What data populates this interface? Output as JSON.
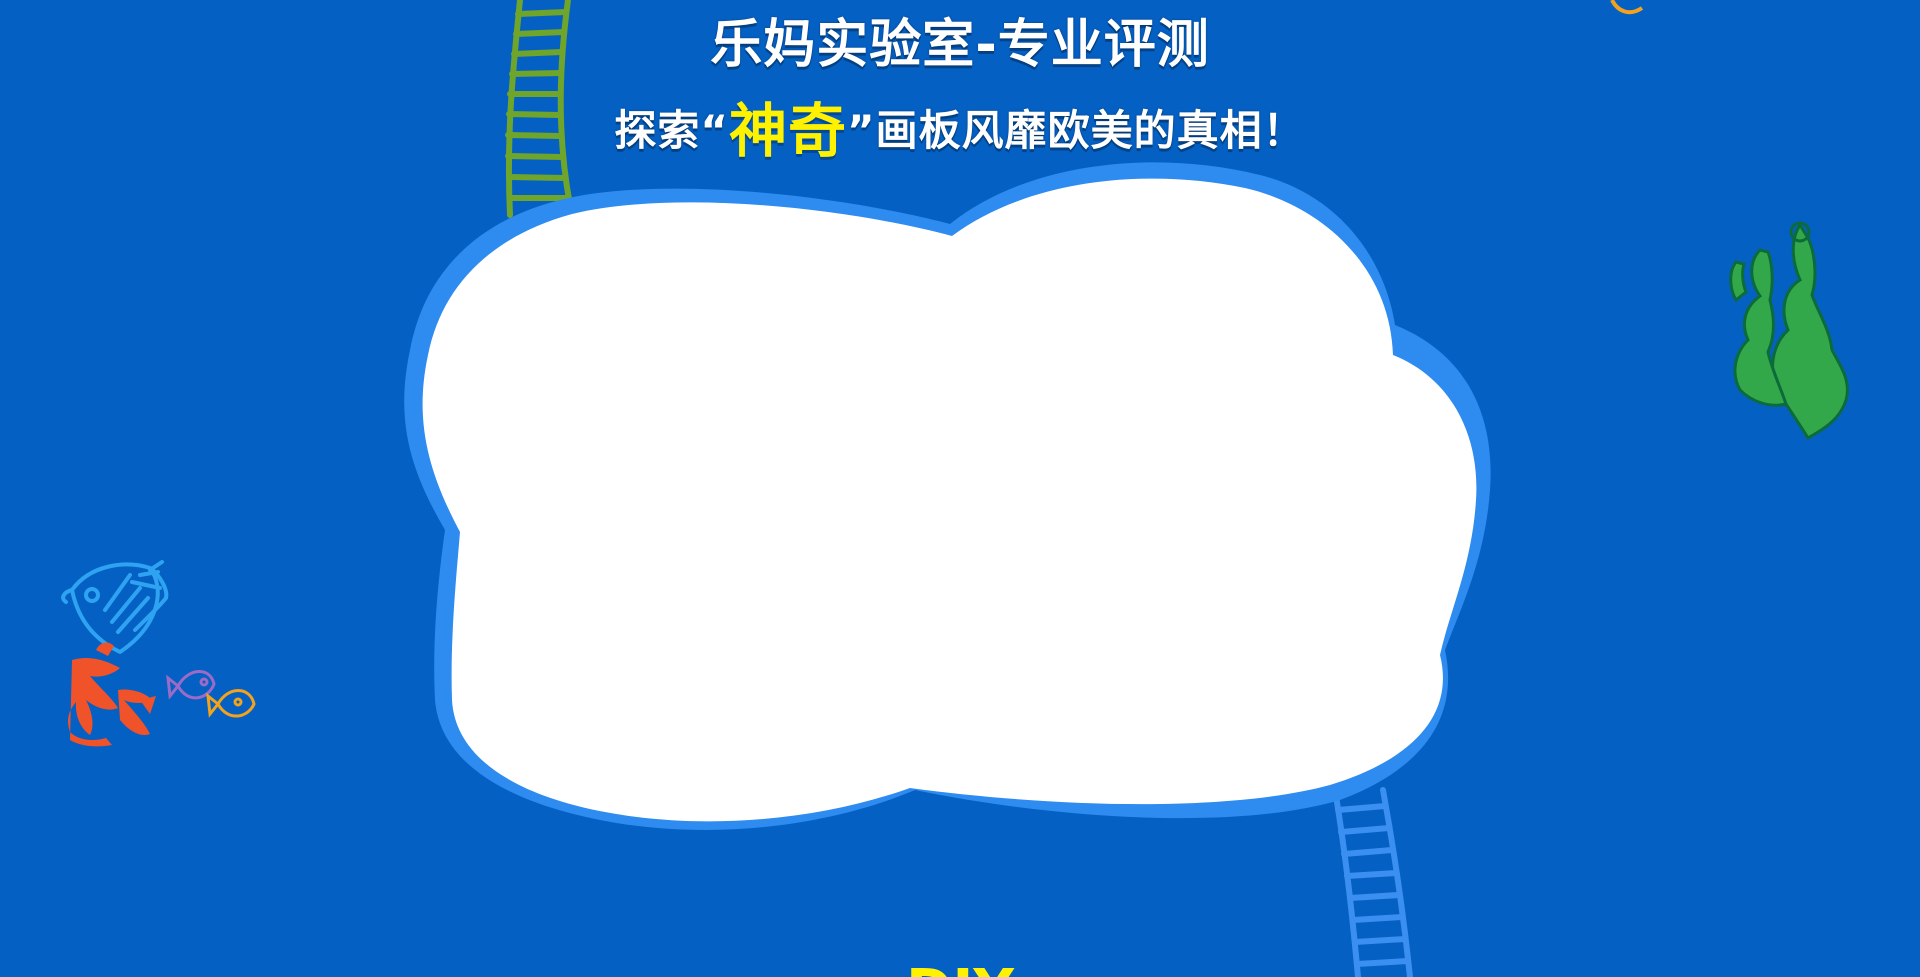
{
  "header": {
    "title": "乐妈实验室-专业评测",
    "subtitle_before": "探索“",
    "subtitle_highlight": "神奇",
    "subtitle_after": "”画板风靡欧美的真相！"
  },
  "footer": {
    "partial_text": "DIY"
  },
  "decorations": {
    "background_color": "#0560C3",
    "cloud_fill": "#FFFFFF",
    "cloud_outline": "#2E8BF0",
    "highlight_color": "#FFF200",
    "icons": [
      "ladder-icon",
      "seaweed-icon",
      "fish-icon",
      "coral-icon"
    ]
  }
}
